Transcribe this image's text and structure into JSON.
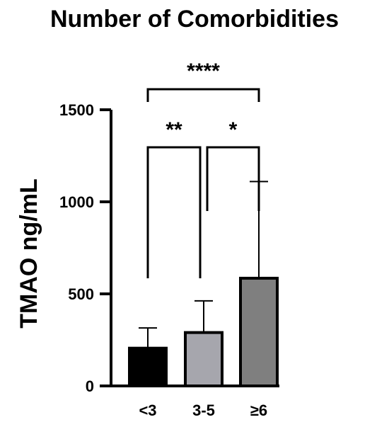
{
  "chart_data": {
    "type": "bar",
    "title": "Number of Comorbidities",
    "xlabel": "",
    "ylabel": "TMAO ng/mL",
    "categories": [
      "<3",
      "3-5",
      "≥6"
    ],
    "values": [
      205,
      290,
      585
    ],
    "error_upper": [
      315,
      462,
      1110
    ],
    "ylim": [
      0,
      1500
    ],
    "yticks": [
      0,
      500,
      1000,
      1500
    ],
    "yticks_labels": [
      "0",
      "500",
      "1000",
      "1500"
    ],
    "bar_colors": [
      "#000000",
      "#a6a6ad",
      "#7f7f7f"
    ],
    "comparisons": [
      {
        "from": 0,
        "to": 2,
        "label": "****"
      },
      {
        "from": 0,
        "to": 1,
        "label": "**"
      },
      {
        "from": 1,
        "to": 2,
        "label": "*"
      }
    ],
    "grid": false,
    "legend": "none"
  }
}
